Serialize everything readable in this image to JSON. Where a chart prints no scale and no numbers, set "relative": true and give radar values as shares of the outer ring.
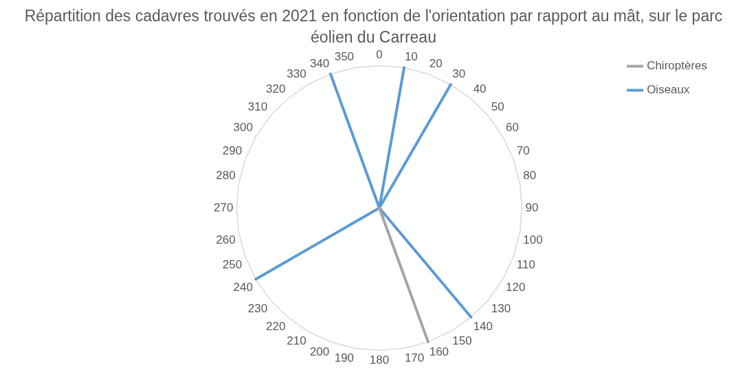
{
  "chart_data": {
    "type": "radar",
    "title": "Répartition des cadavres trouvés en 2021 en fonction de l'orientation par rapport au mât, sur le parc éolien du Carreau",
    "relative": true,
    "categories": [
      "0",
      "10",
      "20",
      "30",
      "40",
      "50",
      "60",
      "70",
      "80",
      "90",
      "100",
      "110",
      "120",
      "130",
      "140",
      "150",
      "160",
      "170",
      "180",
      "190",
      "200",
      "210",
      "220",
      "230",
      "240",
      "250",
      "260",
      "270",
      "280",
      "290",
      "300",
      "310",
      "320",
      "330",
      "340",
      "350"
    ],
    "series": [
      {
        "name": "Chiroptères",
        "color": "#a5a5a5",
        "values": [
          0,
          0,
          0,
          0,
          0,
          0,
          0,
          0,
          0,
          0,
          0,
          0,
          0,
          0,
          0,
          0,
          1,
          0,
          0,
          0,
          0,
          0,
          0,
          0,
          0,
          0,
          0,
          0,
          0,
          0,
          0,
          0,
          0,
          0,
          0,
          0
        ]
      },
      {
        "name": "Oiseaux",
        "color": "#5b9bd5",
        "values": [
          0,
          1,
          0,
          1,
          0,
          0,
          0,
          0,
          0,
          0,
          0,
          0,
          0,
          0,
          1,
          0,
          0,
          0,
          0,
          0,
          0,
          0,
          0,
          0,
          1,
          0,
          0,
          0,
          0,
          0,
          0,
          0,
          0,
          0,
          1,
          0
        ]
      }
    ],
    "grid": true,
    "legend": "right",
    "marker": "none"
  }
}
